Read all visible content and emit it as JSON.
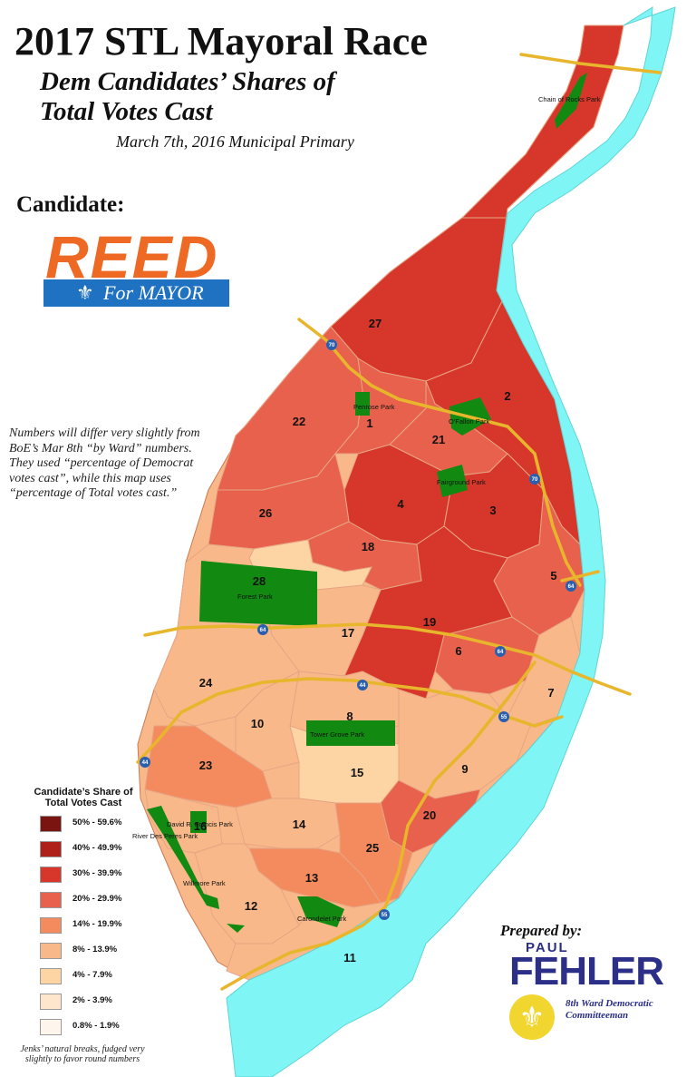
{
  "title": "2017 STL Mayoral Race",
  "subtitle_line1": "Dem Candidates’ Shares of",
  "subtitle_line2": "Total Votes Cast",
  "dateline": "March 7th, 2016 Municipal Primary",
  "candidate_label": "Candidate:",
  "candidate_logo": {
    "name": "REED",
    "tagline": "For MAYOR",
    "emblem": "fleur-de-lis-icon",
    "colors": {
      "name": "#ee6a24",
      "bar": "#1f72c2"
    }
  },
  "note_lines": [
    "Numbers will differ very slightly from",
    "BoE’s Mar 8th “by Ward” numbers.",
    "They used “percentage of Democrat",
    "votes cast”, while this map uses",
    "“percentage of Total votes cast.”"
  ],
  "legend": {
    "title_line1": "Candidate’s Share of",
    "title_line2": "Total Votes Cast",
    "classes": [
      {
        "label": "50% - 59.6%",
        "color": "#7a1410"
      },
      {
        "label": "40% - 49.9%",
        "color": "#b0201a"
      },
      {
        "label": "30% - 39.9%",
        "color": "#d7372a"
      },
      {
        "label": "20% - 29.9%",
        "color": "#e8614c"
      },
      {
        "label": "14% - 19.9%",
        "color": "#f38b5e"
      },
      {
        "label": "8% - 13.9%",
        "color": "#f9b889"
      },
      {
        "label": "4% - 7.9%",
        "color": "#fdd5a5"
      },
      {
        "label": "2% - 3.9%",
        "color": "#fde6cb"
      },
      {
        "label": "0.8% - 1.9%",
        "color": "#fef6ec"
      }
    ],
    "footnote_line1": "Jenks’ natural breaks, fudged very",
    "footnote_line2": "slightly to favor round numbers"
  },
  "wards": [
    {
      "label": "27",
      "class": "30% - 39.9%"
    },
    {
      "label": "2",
      "class": "30% - 39.9%"
    },
    {
      "label": "22",
      "class": "20% - 29.9%"
    },
    {
      "label": "1",
      "class": "20% - 29.9%"
    },
    {
      "label": "21",
      "class": "20% - 29.9%"
    },
    {
      "label": "4",
      "class": "30% - 39.9%"
    },
    {
      "label": "3",
      "class": "30% - 39.9%"
    },
    {
      "label": "26",
      "class": "20% - 29.9%"
    },
    {
      "label": "18",
      "class": "20% - 29.9%"
    },
    {
      "label": "5",
      "class": "20% - 29.9%"
    },
    {
      "label": "28",
      "class": "4% - 7.9%"
    },
    {
      "label": "19",
      "class": "30% - 39.9%"
    },
    {
      "label": "17",
      "class": "8% - 13.9%"
    },
    {
      "label": "6",
      "class": "20% - 29.9%"
    },
    {
      "label": "24",
      "class": "8% - 13.9%"
    },
    {
      "label": "7",
      "class": "8% - 13.9%"
    },
    {
      "label": "8",
      "class": "8% - 13.9%"
    },
    {
      "label": "10",
      "class": "8% - 13.9%"
    },
    {
      "label": "23",
      "class": "14% - 19.9%"
    },
    {
      "label": "15",
      "class": "4% - 7.9%"
    },
    {
      "label": "9",
      "class": "8% - 13.9%"
    },
    {
      "label": "20",
      "class": "20% - 29.9%"
    },
    {
      "label": "16",
      "class": "8% - 13.9%"
    },
    {
      "label": "14",
      "class": "8% - 13.9%"
    },
    {
      "label": "25",
      "class": "14% - 19.9%"
    },
    {
      "label": "13",
      "class": "14% - 19.9%"
    },
    {
      "label": "12",
      "class": "8% - 13.9%"
    },
    {
      "label": "11",
      "class": "8% - 13.9%"
    }
  ],
  "parks": [
    "Chain of Rocks Park",
    "Penrose Park",
    "O'Fallon Park",
    "Fairground Park",
    "Forest Park",
    "Tower Grove Park",
    "David R. Francis Park",
    "River Des Peres Park",
    "Willmore Park",
    "Carondelet Park"
  ],
  "highways": [
    "70",
    "70",
    "64",
    "64",
    "64",
    "44",
    "44",
    "55",
    "55"
  ],
  "colors": {
    "river": "#7ff5f5",
    "park": "#128a12",
    "highway": "#e8b62c",
    "highway_shield": "#2a5fb0"
  },
  "prepared_by": {
    "label": "Prepared by:",
    "first_name": "PAUL",
    "last_name": "FEHLER",
    "role_line1": "8th Ward Democratic",
    "role_line2": "Committeeman",
    "emblem": "fleur-de-lis-icon",
    "emblem_color": "#f1d630",
    "text_color": "#2b2f88"
  }
}
